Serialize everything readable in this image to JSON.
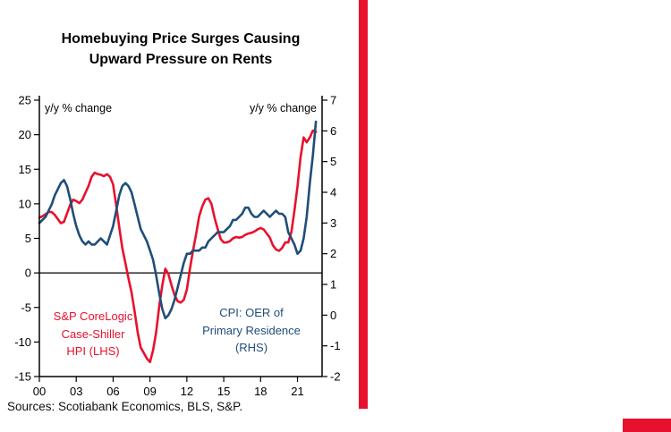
{
  "page": {
    "background": "#ffffff",
    "accent_red": "#e8112d",
    "navy": "#1f4e79"
  },
  "title": "Homebuying Price Surges Causing\nUpward Pressure on Rents",
  "sources": "Sources: Scotiabank Economics, BLS, S&P.",
  "chart_data": {
    "type": "line",
    "title": "Homebuying Price Surges Causing Upward Pressure on Rents",
    "grid": false,
    "left_axis": {
      "label": "y/y % change",
      "min": -15,
      "max": 25,
      "ticks": [
        25,
        20,
        15,
        10,
        5,
        0,
        -5,
        -10,
        -15
      ]
    },
    "right_axis": {
      "label": "y/y % change",
      "min": -2,
      "max": 7,
      "ticks": [
        7,
        6,
        5,
        4,
        3,
        2,
        1,
        0,
        -1,
        -2
      ]
    },
    "x_axis": {
      "min": 2000,
      "max": 2023,
      "tick_values": [
        2000,
        2003,
        2006,
        2009,
        2012,
        2015,
        2018,
        2021
      ],
      "tick_labels": [
        "00",
        "03",
        "06",
        "09",
        "12",
        "15",
        "18",
        "21"
      ]
    },
    "series": [
      {
        "name": "S&P CoreLogic Case-Shiller HPI (LHS)",
        "axis": "left",
        "color": "#e8112d",
        "x_start": 2000,
        "x_step": 0.25,
        "values": [
          8.0,
          8.2,
          8.5,
          8.8,
          8.8,
          8.4,
          7.8,
          7.2,
          7.4,
          8.6,
          9.8,
          10.6,
          10.4,
          10.1,
          10.6,
          11.6,
          12.6,
          13.9,
          14.5,
          14.3,
          14.2,
          14.0,
          14.3,
          13.9,
          12.8,
          9.8,
          6.6,
          3.6,
          1.4,
          -0.8,
          -2.8,
          -5.6,
          -8.6,
          -10.8,
          -11.6,
          -12.4,
          -12.9,
          -11.2,
          -8.6,
          -4.8,
          -1.8,
          0.6,
          -0.2,
          -1.8,
          -3.2,
          -4.1,
          -4.3,
          -3.9,
          -2.4,
          0.6,
          3.2,
          5.6,
          8.2,
          9.6,
          10.6,
          10.8,
          10.0,
          8.0,
          6.4,
          4.9,
          4.4,
          4.4,
          4.6,
          5.0,
          5.2,
          5.1,
          5.2,
          5.5,
          5.7,
          5.8,
          6.0,
          6.3,
          6.5,
          6.3,
          5.7,
          5.1,
          4.0,
          3.4,
          3.2,
          3.6,
          4.4,
          4.4,
          5.9,
          9.0,
          12.5,
          16.8,
          19.6,
          18.9,
          19.6,
          20.6,
          20.4
        ]
      },
      {
        "name": "CPI: OER of Primary Residence (RHS)",
        "axis": "right",
        "color": "#1f4e79",
        "x_start": 2000,
        "x_step": 0.25,
        "values": [
          3.0,
          3.1,
          3.2,
          3.4,
          3.6,
          3.9,
          4.1,
          4.3,
          4.4,
          4.2,
          3.8,
          3.3,
          2.9,
          2.6,
          2.4,
          2.3,
          2.4,
          2.3,
          2.3,
          2.4,
          2.5,
          2.4,
          2.3,
          2.6,
          2.9,
          3.4,
          3.9,
          4.2,
          4.3,
          4.2,
          4.0,
          3.6,
          3.2,
          2.8,
          2.6,
          2.4,
          2.1,
          1.8,
          1.3,
          0.7,
          0.2,
          -0.1,
          0.0,
          0.2,
          0.5,
          0.9,
          1.3,
          1.7,
          2.0,
          2.0,
          2.1,
          2.1,
          2.1,
          2.2,
          2.2,
          2.4,
          2.5,
          2.6,
          2.7,
          2.7,
          2.7,
          2.8,
          2.9,
          3.1,
          3.1,
          3.2,
          3.3,
          3.5,
          3.5,
          3.3,
          3.2,
          3.2,
          3.3,
          3.4,
          3.3,
          3.2,
          3.3,
          3.4,
          3.3,
          3.3,
          3.2,
          2.7,
          2.5,
          2.3,
          2.0,
          2.1,
          2.5,
          3.2,
          4.3,
          5.2,
          6.3
        ]
      }
    ],
    "annotations": [
      {
        "text": "S&P CoreLogic\nCase-Shiller\nHPI (LHS)",
        "color": "#e8112d"
      },
      {
        "text": "CPI: OER of\nPrimary Residence\n(RHS)",
        "color": "#1f4e79"
      }
    ]
  }
}
